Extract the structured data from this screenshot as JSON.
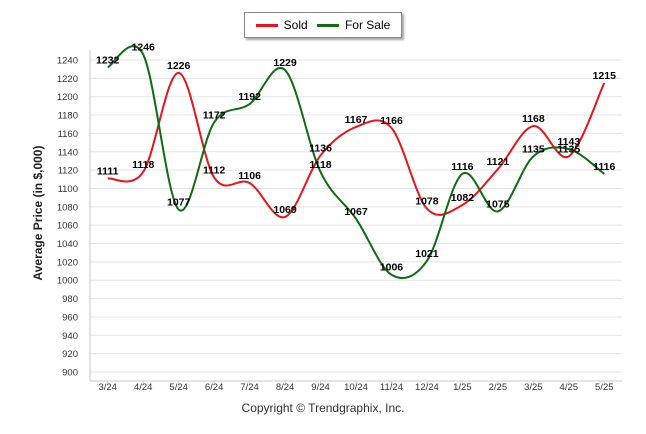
{
  "legend": {
    "sold": "Sold",
    "for_sale": "For Sale"
  },
  "footer": "Copyright © Trendgraphix, Inc.",
  "colors": {
    "sold": "#e8141b",
    "for_sale": "#0f6b14",
    "grid": "#e4e4e4"
  },
  "chart_data": {
    "type": "line",
    "categories": [
      "3/24",
      "4/24",
      "5/24",
      "6/24",
      "7/24",
      "8/24",
      "9/24",
      "10/24",
      "11/24",
      "12/24",
      "1/25",
      "2/25",
      "3/25",
      "4/25",
      "5/25"
    ],
    "ylabel": "Average Price (in $,000)",
    "ylim": [
      900,
      1240
    ],
    "yticks": [
      900,
      920,
      940,
      960,
      980,
      1000,
      1020,
      1040,
      1060,
      1080,
      1100,
      1120,
      1140,
      1160,
      1180,
      1200,
      1220,
      1240
    ],
    "grid": true,
    "legend_position": "top-center",
    "series": [
      {
        "name": "Sold",
        "values": [
          1111,
          1118,
          1226,
          1112,
          1106,
          1069,
          1136,
          1167,
          1166,
          1078,
          1082,
          1121,
          1168,
          1135,
          1215
        ]
      },
      {
        "name": "For Sale",
        "values": [
          1232,
          1246,
          1077,
          1172,
          1192,
          1229,
          1118,
          1067,
          1006,
          1021,
          1116,
          1075,
          1135,
          1143,
          1116
        ]
      }
    ]
  }
}
